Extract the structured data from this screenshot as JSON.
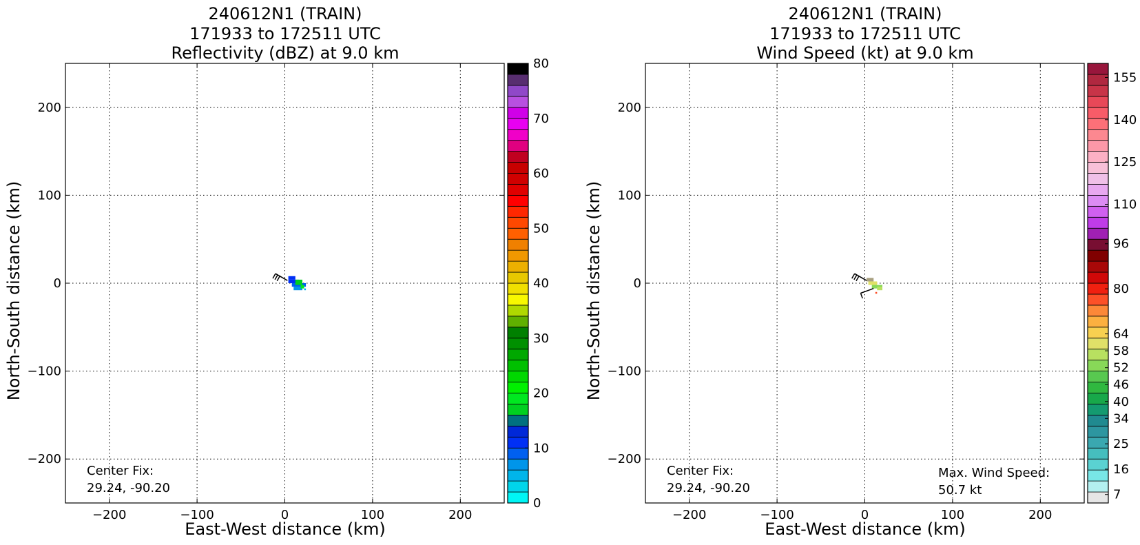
{
  "panels": [
    {
      "title_lines": [
        "240612N1 (TRAIN)",
        "171933 to 172511 UTC",
        "Reflectivity (dBZ) at 9.0 km"
      ],
      "fix_label": "Center Fix:",
      "fix_value": "29.24, -90.20"
    },
    {
      "title_lines": [
        "240612N1 (TRAIN)",
        "171933 to 172511 UTC",
        "Wind Speed (kt) at 9.0 km"
      ],
      "fix_label": "Center Fix:",
      "fix_value": "29.24, -90.20",
      "max_label": "Max. Wind Speed:",
      "max_value": "50.7 kt"
    }
  ],
  "chart_data": [
    {
      "type": "heatmap",
      "title": "240612N1 (TRAIN)\n171933 to 172511 UTC\nReflectivity (dBZ) at 9.0 km",
      "xlabel": "East-West distance (km)",
      "ylabel": "North-South distance (km)",
      "xlim": [
        -250,
        250
      ],
      "ylim": [
        -250,
        250
      ],
      "xticks": [
        -200,
        -100,
        0,
        100,
        200
      ],
      "yticks": [
        -200,
        -100,
        0,
        100,
        200
      ],
      "xtick_labels": [
        "−200",
        "−100",
        "0",
        "100",
        "200"
      ],
      "ytick_labels": [
        "−200",
        "−100",
        "0",
        "100",
        "200"
      ],
      "grid": true,
      "colorbar": {
        "min": 0,
        "max": 80,
        "ticks": [
          0,
          10,
          20,
          30,
          40,
          50,
          60,
          70,
          80
        ],
        "tick_labels": [
          "0",
          "10",
          "20",
          "30",
          "40",
          "50",
          "60",
          "70",
          "80"
        ],
        "colors": [
          "#00f5f5",
          "#00d5ea",
          "#00b5ea",
          "#0095ea",
          "#0060f0",
          "#0030f5",
          "#0028d8",
          "#007080",
          "#00d020",
          "#00e820",
          "#00f000",
          "#00d800",
          "#00c000",
          "#00a800",
          "#009000",
          "#008000",
          "#60b000",
          "#b0d800",
          "#f8f800",
          "#f0e000",
          "#e8c800",
          "#ecb000",
          "#f09800",
          "#f08000",
          "#ff6000",
          "#ff4800",
          "#ff2800",
          "#ff0000",
          "#e00000",
          "#d00000",
          "#c80000",
          "#c00020",
          "#e00080",
          "#f000c8",
          "#e800f0",
          "#d000e8",
          "#b850e0",
          "#9048c8",
          "#582e70",
          "#000000"
        ]
      },
      "cells": [
        {
          "x": 4,
          "y": 4,
          "w": 8,
          "h": 4,
          "color": "#0030f5"
        },
        {
          "x": 4,
          "y": 0,
          "w": 12,
          "h": 4,
          "color": "#0030f5"
        },
        {
          "x": 8,
          "y": -4,
          "w": 16,
          "h": 4,
          "color": "#0060f0"
        },
        {
          "x": 10,
          "y": -8,
          "w": 10,
          "h": 4,
          "color": "#0095ea"
        },
        {
          "x": 12,
          "y": -2,
          "w": 8,
          "h": 6,
          "color": "#00d020"
        },
        {
          "x": 18,
          "y": -6,
          "w": 4,
          "h": 4,
          "color": "#00e820"
        },
        {
          "x": 22,
          "y": -8,
          "w": 2,
          "h": 2,
          "color": "#00b5ea"
        }
      ],
      "wind_barbs": [
        {
          "x": 3,
          "y": 3,
          "direction_deg": 300,
          "speed_kt": 30
        }
      ]
    },
    {
      "type": "heatmap",
      "title": "240612N1 (TRAIN)\n171933 to 172511 UTC\nWind Speed (kt) at 9.0 km",
      "xlabel": "East-West distance (km)",
      "ylabel": "North-South distance (km)",
      "xlim": [
        -250,
        250
      ],
      "ylim": [
        -250,
        250
      ],
      "xticks": [
        -200,
        -100,
        0,
        100,
        200
      ],
      "yticks": [
        -200,
        -100,
        0,
        100,
        200
      ],
      "xtick_labels": [
        "−200",
        "−100",
        "0",
        "100",
        "200"
      ],
      "ytick_labels": [
        "−200",
        "−100",
        "0",
        "100",
        "200"
      ],
      "grid": true,
      "max_wind_speed_kt": 50.7,
      "colorbar": {
        "min": 4,
        "max": 160,
        "ticks": [
          7,
          16,
          25,
          34,
          40,
          46,
          52,
          58,
          64,
          80,
          96,
          110,
          125,
          140,
          155
        ],
        "tick_labels": [
          "7",
          "16",
          "25",
          "34",
          "40",
          "46",
          "52",
          "58",
          "64",
          "80",
          "96",
          "110",
          "125",
          "140",
          "155"
        ],
        "colors": [
          "#e6e6e6",
          "#b4f0f0",
          "#78e6e6",
          "#5ad2d2",
          "#46bebe",
          "#3aa8b0",
          "#2d96a0",
          "#208a90",
          "#149a70",
          "#18a84a",
          "#30b840",
          "#58c850",
          "#88d858",
          "#b8e060",
          "#e0e068",
          "#f8d050",
          "#fcb040",
          "#fc8838",
          "#fc5028",
          "#f02010",
          "#d00808",
          "#a80808",
          "#800000",
          "#780e32",
          "#a020b4",
          "#c03ce8",
          "#d060f0",
          "#dc8cf4",
          "#e8a8f0",
          "#f0c0e8",
          "#f8c0d8",
          "#fcb0c4",
          "#fc98a8",
          "#fc8890",
          "#fc7078",
          "#f85c68",
          "#e84858",
          "#c83448",
          "#b02840",
          "#98163c"
        ]
      },
      "cells": [
        {
          "x": 2,
          "y": 2,
          "w": 8,
          "h": 4,
          "color": "#a8a080"
        },
        {
          "x": 4,
          "y": -2,
          "w": 10,
          "h": 4,
          "color": "#e0e068"
        },
        {
          "x": 8,
          "y": -6,
          "w": 12,
          "h": 4,
          "color": "#88d858"
        },
        {
          "x": 14,
          "y": -8,
          "w": 6,
          "h": 4,
          "color": "#b8e060"
        },
        {
          "x": 12,
          "y": -12,
          "w": 2,
          "h": 2,
          "color": "#fc5028"
        }
      ],
      "wind_barbs": [
        {
          "x": 2,
          "y": 3,
          "direction_deg": 300,
          "speed_kt": 30
        },
        {
          "x": 10,
          "y": -6,
          "direction_deg": 250,
          "speed_kt": 10
        }
      ]
    }
  ]
}
